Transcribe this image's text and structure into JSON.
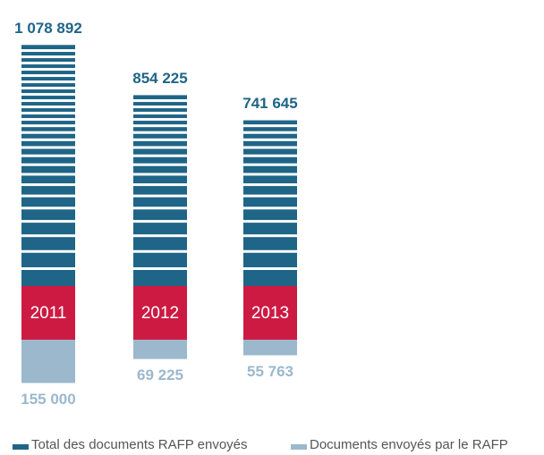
{
  "chart_data": {
    "type": "bar",
    "categories": [
      "2011",
      "2012",
      "2013"
    ],
    "category_color": "#cd1a43",
    "series": [
      {
        "name": "Total des documents RAFP envoyés",
        "color": "#1f6587",
        "values": [
          1078892,
          854225,
          741645
        ],
        "value_labels": [
          "1 078 892",
          "854 225",
          "741 645"
        ]
      },
      {
        "name": "Documents envoyés par le RAFP",
        "color": "#9bb8cc",
        "values": [
          155000,
          69225,
          55763
        ],
        "value_labels": [
          "155 000",
          "69 225",
          "55 763"
        ]
      }
    ]
  }
}
